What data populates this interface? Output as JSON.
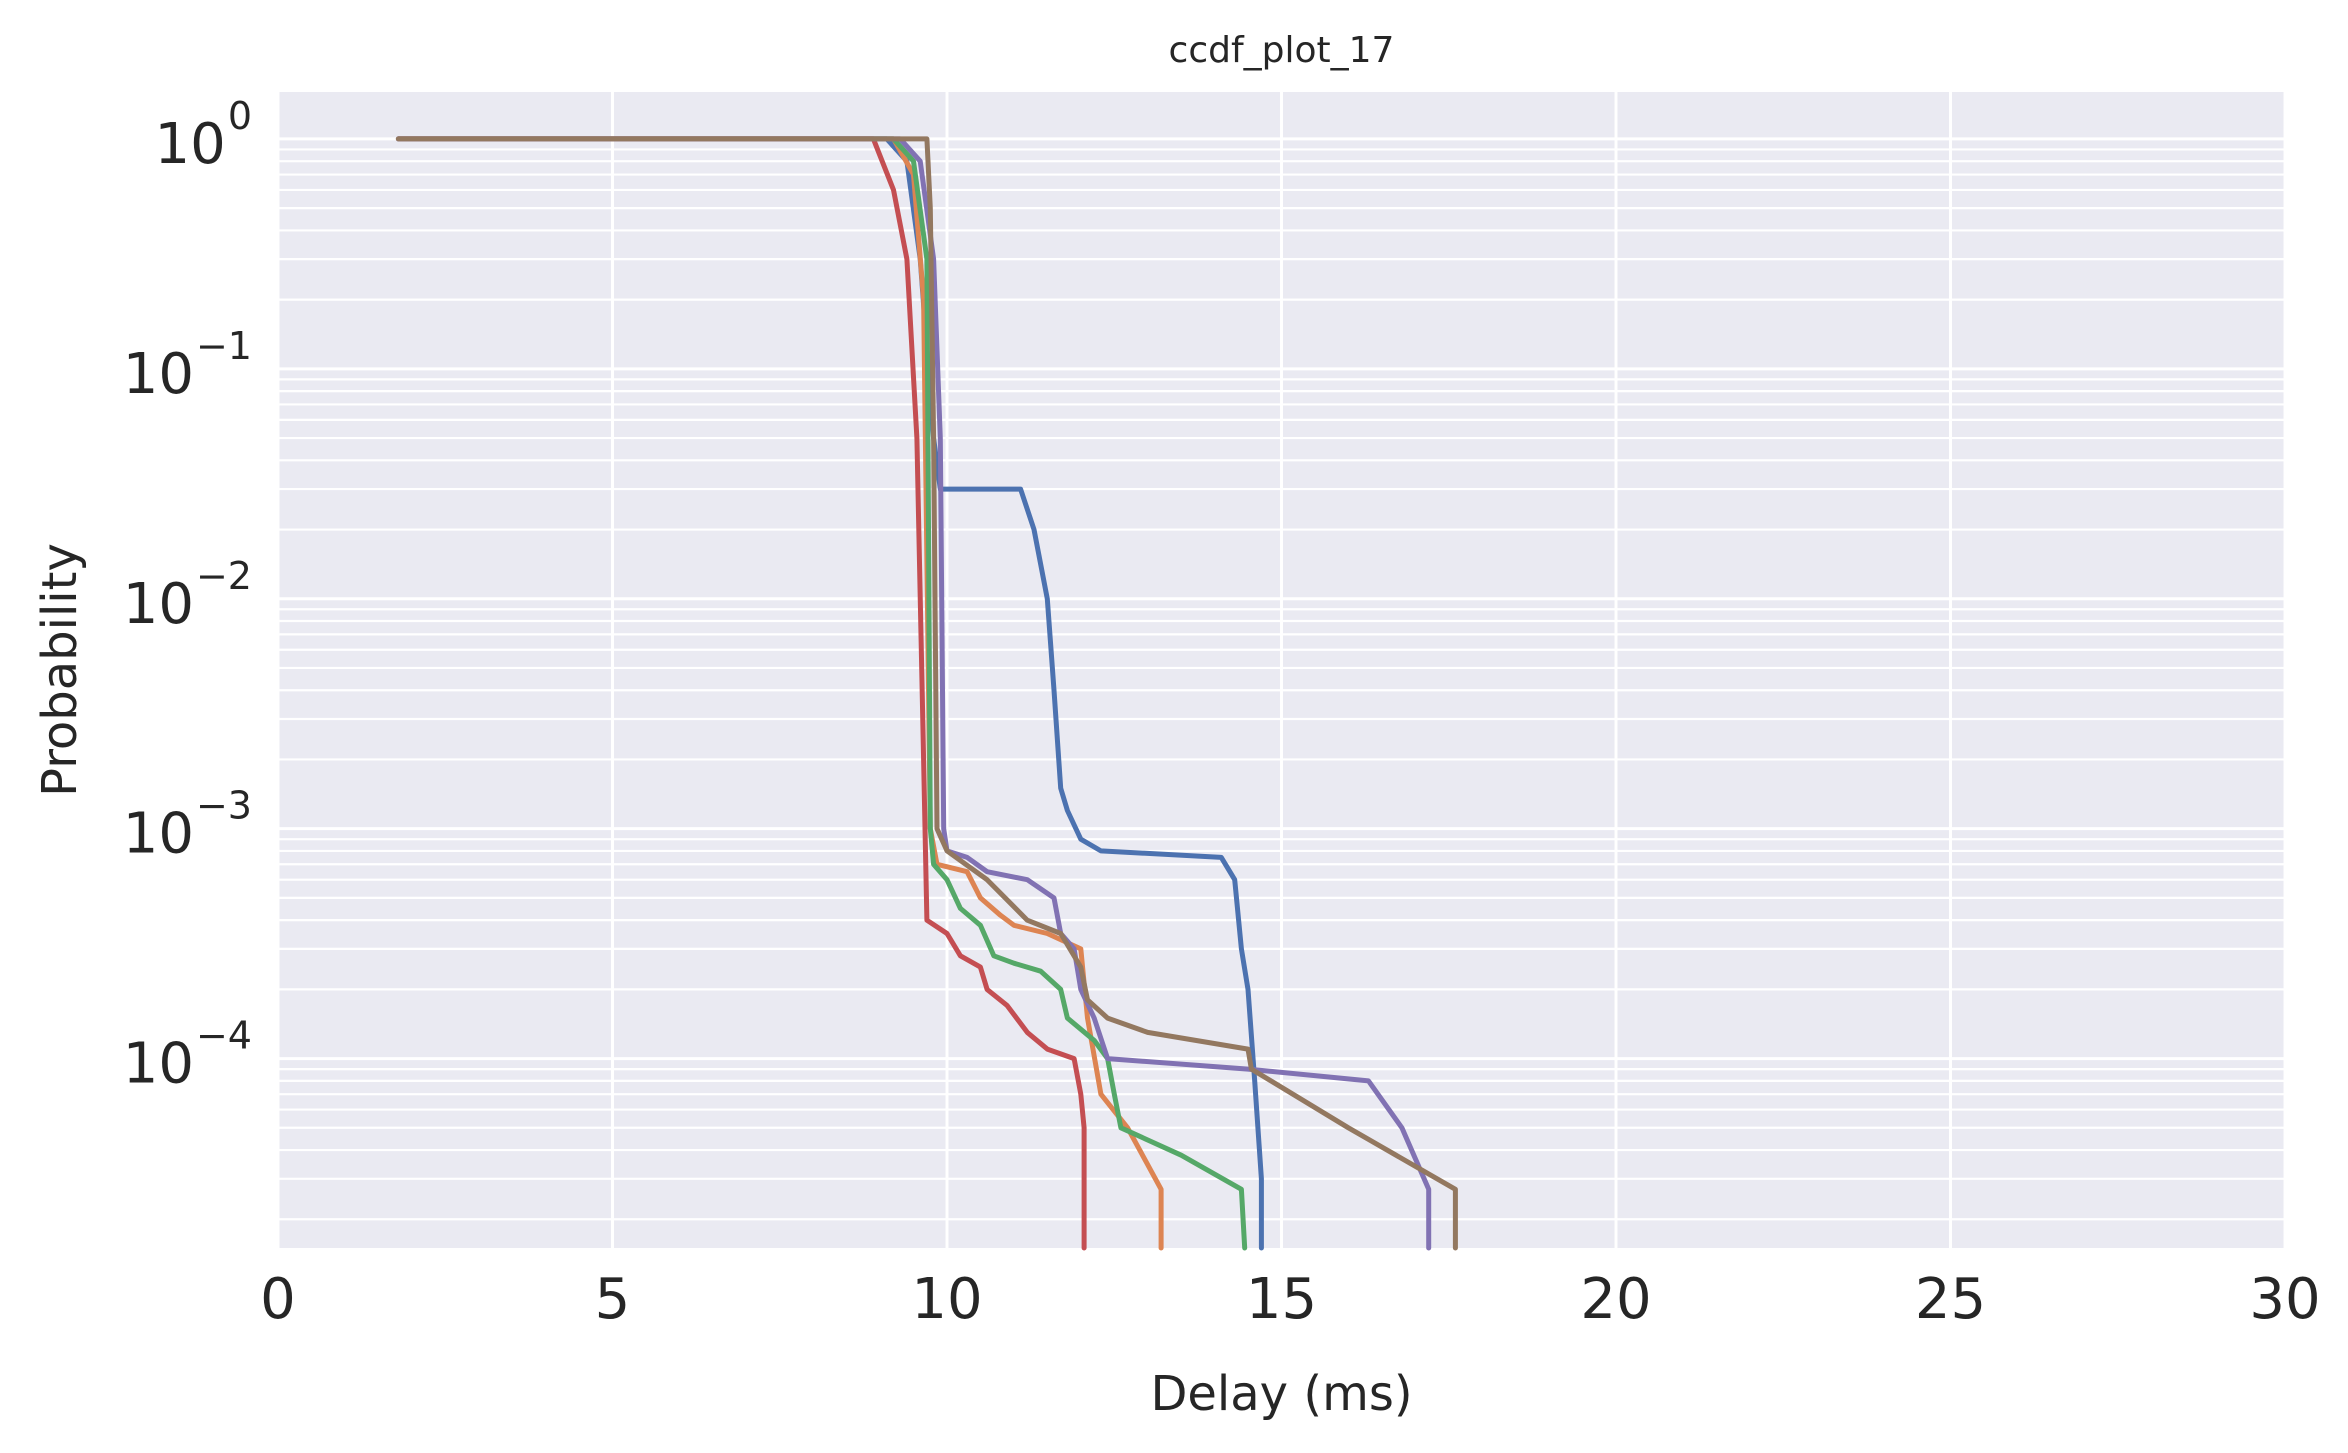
{
  "chart_data": {
    "type": "line",
    "title": "ccdf_plot_17",
    "xlabel": "Delay (ms)",
    "ylabel": "Probability",
    "xscale": "linear",
    "yscale": "log",
    "xlim": [
      0,
      30
    ],
    "ylim": [
      1.5e-05,
      1.6
    ],
    "xticks": [
      0,
      5,
      10,
      15,
      20,
      25,
      30
    ],
    "yticks": [
      {
        "base": "10",
        "exp": "0",
        "value": 1
      },
      {
        "base": "10",
        "exp": "−1",
        "value": 0.1
      },
      {
        "base": "10",
        "exp": "−2",
        "value": 0.01
      },
      {
        "base": "10",
        "exp": "−3",
        "value": 0.001
      },
      {
        "base": "10",
        "exp": "−4",
        "value": 0.0001
      }
    ],
    "grid": true,
    "background": "#eaeaf2",
    "series": [
      {
        "color": "#4c72b0",
        "points": [
          [
            1.8,
            1
          ],
          [
            9.1,
            1
          ],
          [
            9.4,
            0.8
          ],
          [
            9.6,
            0.3
          ],
          [
            9.8,
            0.05
          ],
          [
            9.9,
            0.03
          ],
          [
            11.1,
            0.03
          ],
          [
            11.3,
            0.02
          ],
          [
            11.5,
            0.01
          ],
          [
            11.6,
            0.004
          ],
          [
            11.7,
            0.0015
          ],
          [
            11.8,
            0.0012
          ],
          [
            12.0,
            0.0009
          ],
          [
            12.3,
            0.0008
          ],
          [
            14.1,
            0.00075
          ],
          [
            14.3,
            0.0006
          ],
          [
            14.4,
            0.0003
          ],
          [
            14.5,
            0.0002
          ],
          [
            14.6,
            8e-05
          ],
          [
            14.7,
            3e-05
          ],
          [
            14.7,
            1.5e-05
          ]
        ]
      },
      {
        "color": "#dd8452",
        "points": [
          [
            1.8,
            1
          ],
          [
            9.2,
            1
          ],
          [
            9.5,
            0.7
          ],
          [
            9.65,
            0.2
          ],
          [
            9.75,
            0.001
          ],
          [
            9.85,
            0.0007
          ],
          [
            10.3,
            0.00065
          ],
          [
            10.5,
            0.0005
          ],
          [
            10.8,
            0.00042
          ],
          [
            11.0,
            0.00038
          ],
          [
            11.5,
            0.00035
          ],
          [
            12.0,
            0.0003
          ],
          [
            12.1,
            0.00015
          ],
          [
            12.3,
            7e-05
          ],
          [
            12.7,
            5e-05
          ],
          [
            13.2,
            2.7e-05
          ],
          [
            13.2,
            1.5e-05
          ]
        ]
      },
      {
        "color": "#55a868",
        "points": [
          [
            1.8,
            1
          ],
          [
            9.2,
            1
          ],
          [
            9.5,
            0.8
          ],
          [
            9.7,
            0.3
          ],
          [
            9.75,
            0.001
          ],
          [
            9.8,
            0.0007
          ],
          [
            10.0,
            0.0006
          ],
          [
            10.2,
            0.00045
          ],
          [
            10.5,
            0.00038
          ],
          [
            10.7,
            0.00028
          ],
          [
            11.0,
            0.00026
          ],
          [
            11.4,
            0.00024
          ],
          [
            11.7,
            0.0002
          ],
          [
            11.8,
            0.00015
          ],
          [
            12.2,
            0.00012
          ],
          [
            12.4,
            0.0001
          ],
          [
            12.5,
            7e-05
          ],
          [
            12.6,
            5e-05
          ],
          [
            13.5,
            3.8e-05
          ],
          [
            14.4,
            2.7e-05
          ],
          [
            14.45,
            1.5e-05
          ]
        ]
      },
      {
        "color": "#c44e52",
        "points": [
          [
            1.8,
            1
          ],
          [
            8.9,
            1
          ],
          [
            9.2,
            0.6
          ],
          [
            9.4,
            0.3
          ],
          [
            9.55,
            0.05
          ],
          [
            9.65,
            0.002
          ],
          [
            9.7,
            0.0004
          ],
          [
            10.0,
            0.00035
          ],
          [
            10.2,
            0.00028
          ],
          [
            10.5,
            0.00025
          ],
          [
            10.6,
            0.0002
          ],
          [
            10.9,
            0.00017
          ],
          [
            11.2,
            0.00013
          ],
          [
            11.5,
            0.00011
          ],
          [
            11.9,
            0.0001
          ],
          [
            12.0,
            7e-05
          ],
          [
            12.05,
            5e-05
          ],
          [
            12.05,
            1.5e-05
          ]
        ]
      },
      {
        "color": "#8172b3",
        "points": [
          [
            1.8,
            1
          ],
          [
            9.3,
            1
          ],
          [
            9.6,
            0.8
          ],
          [
            9.8,
            0.3
          ],
          [
            9.9,
            0.05
          ],
          [
            9.95,
            0.001
          ],
          [
            10.0,
            0.0008
          ],
          [
            10.3,
            0.00075
          ],
          [
            10.6,
            0.00065
          ],
          [
            11.2,
            0.0006
          ],
          [
            11.6,
            0.0005
          ],
          [
            11.7,
            0.00035
          ],
          [
            11.9,
            0.0003
          ],
          [
            12.0,
            0.0002
          ],
          [
            12.2,
            0.00015
          ],
          [
            12.4,
            0.0001
          ],
          [
            14.5,
            9e-05
          ],
          [
            16.3,
            8e-05
          ],
          [
            16.8,
            5e-05
          ],
          [
            17.2,
            2.7e-05
          ],
          [
            17.2,
            1.5e-05
          ]
        ]
      },
      {
        "color": "#937860",
        "points": [
          [
            1.8,
            1
          ],
          [
            9.7,
            1
          ],
          [
            9.75,
            0.5
          ],
          [
            9.8,
            0.05
          ],
          [
            9.85,
            0.001
          ],
          [
            10.0,
            0.0008
          ],
          [
            10.6,
            0.0006
          ],
          [
            11.2,
            0.0004
          ],
          [
            11.7,
            0.00035
          ],
          [
            12.0,
            0.00025
          ],
          [
            12.1,
            0.00018
          ],
          [
            12.4,
            0.00015
          ],
          [
            13.0,
            0.00013
          ],
          [
            14.5,
            0.00011
          ],
          [
            14.55,
            9e-05
          ],
          [
            16.0,
            5e-05
          ],
          [
            17.6,
            2.7e-05
          ],
          [
            17.6,
            1.5e-05
          ]
        ]
      }
    ]
  }
}
